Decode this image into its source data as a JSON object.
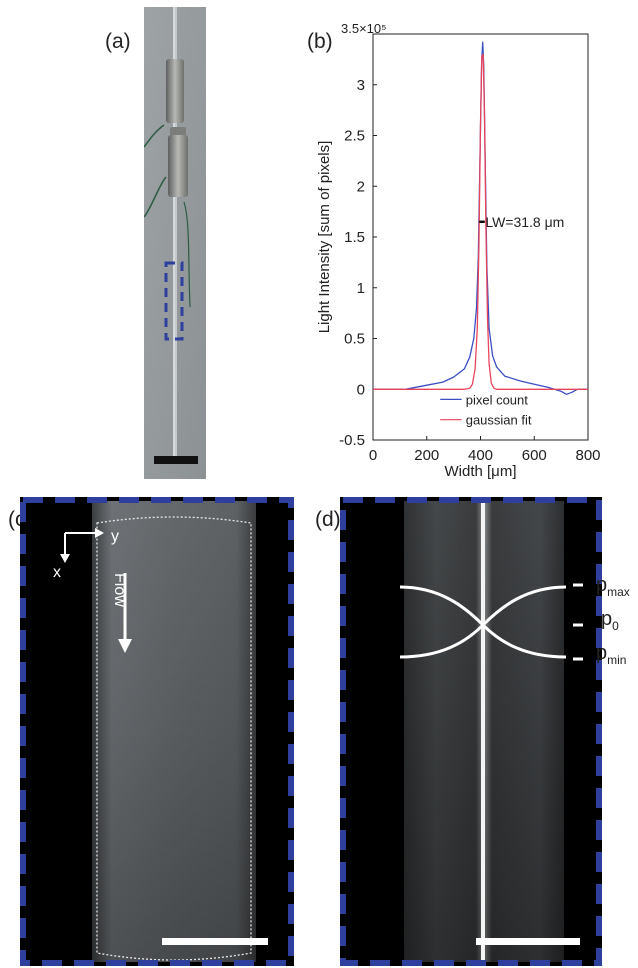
{
  "figure": {
    "panel_labels": {
      "a": "(a)",
      "b": "(b)",
      "c": "(c)",
      "d": "(d)"
    }
  },
  "chart_data": {
    "type": "line",
    "title": "",
    "xlabel": "Width [μm]",
    "ylabel": "Light Intensity [sum of pixels]",
    "y_scale_note": "3.5×10⁵",
    "xlim": [
      0,
      800
    ],
    "ylim": [
      -0.5,
      3.5
    ],
    "xticks": [
      0,
      200,
      400,
      600,
      800
    ],
    "yticks": [
      -0.5,
      0,
      0.5,
      1,
      1.5,
      2,
      2.5,
      3
    ],
    "ytick_labels": [
      "-0.5",
      "0",
      "0.5",
      "1",
      "1.5",
      "2",
      "2.5",
      "3"
    ],
    "xtick_labels": [
      "0",
      "200",
      "400",
      "600",
      "800"
    ],
    "legend_position": "bottom-center",
    "annotation": "LW=31.8 μm",
    "series": [
      {
        "name": "pixel count",
        "color": "#3b4fc2",
        "x": [
          0,
          120,
          200,
          260,
          300,
          340,
          360,
          375,
          385,
          392,
          398,
          404,
          408,
          412,
          418,
          424,
          432,
          445,
          460,
          490,
          550,
          600,
          650,
          700,
          720,
          740,
          760,
          800
        ],
        "y": [
          0,
          0,
          0.04,
          0.07,
          0.12,
          0.2,
          0.32,
          0.5,
          0.8,
          1.3,
          2.3,
          3.2,
          3.42,
          3.2,
          2.2,
          1.2,
          0.6,
          0.33,
          0.22,
          0.13,
          0.08,
          0.05,
          0.02,
          -0.02,
          -0.05,
          -0.03,
          0,
          0
        ]
      },
      {
        "name": "gaussian fit",
        "color": "#e8455c",
        "x": [
          0,
          340,
          360,
          370,
          380,
          388,
          394,
          400,
          405,
          410,
          415,
          420,
          426,
          432,
          440,
          450,
          460,
          800
        ],
        "y": [
          0,
          0,
          0.01,
          0.05,
          0.2,
          0.6,
          1.4,
          2.6,
          3.28,
          3.3,
          2.7,
          1.6,
          0.7,
          0.25,
          0.06,
          0.01,
          0,
          0
        ]
      }
    ]
  },
  "panel_c": {
    "axis_x": "x",
    "axis_y": "y",
    "flow_label": "Flow"
  },
  "panel_d": {
    "p_max": "p",
    "p_max_sub": "max",
    "p_0": "p",
    "p_0_sub": "0",
    "p_min": "p",
    "p_min_sub": "min"
  },
  "colors": {
    "frame_dash": "#2f3f9e"
  }
}
